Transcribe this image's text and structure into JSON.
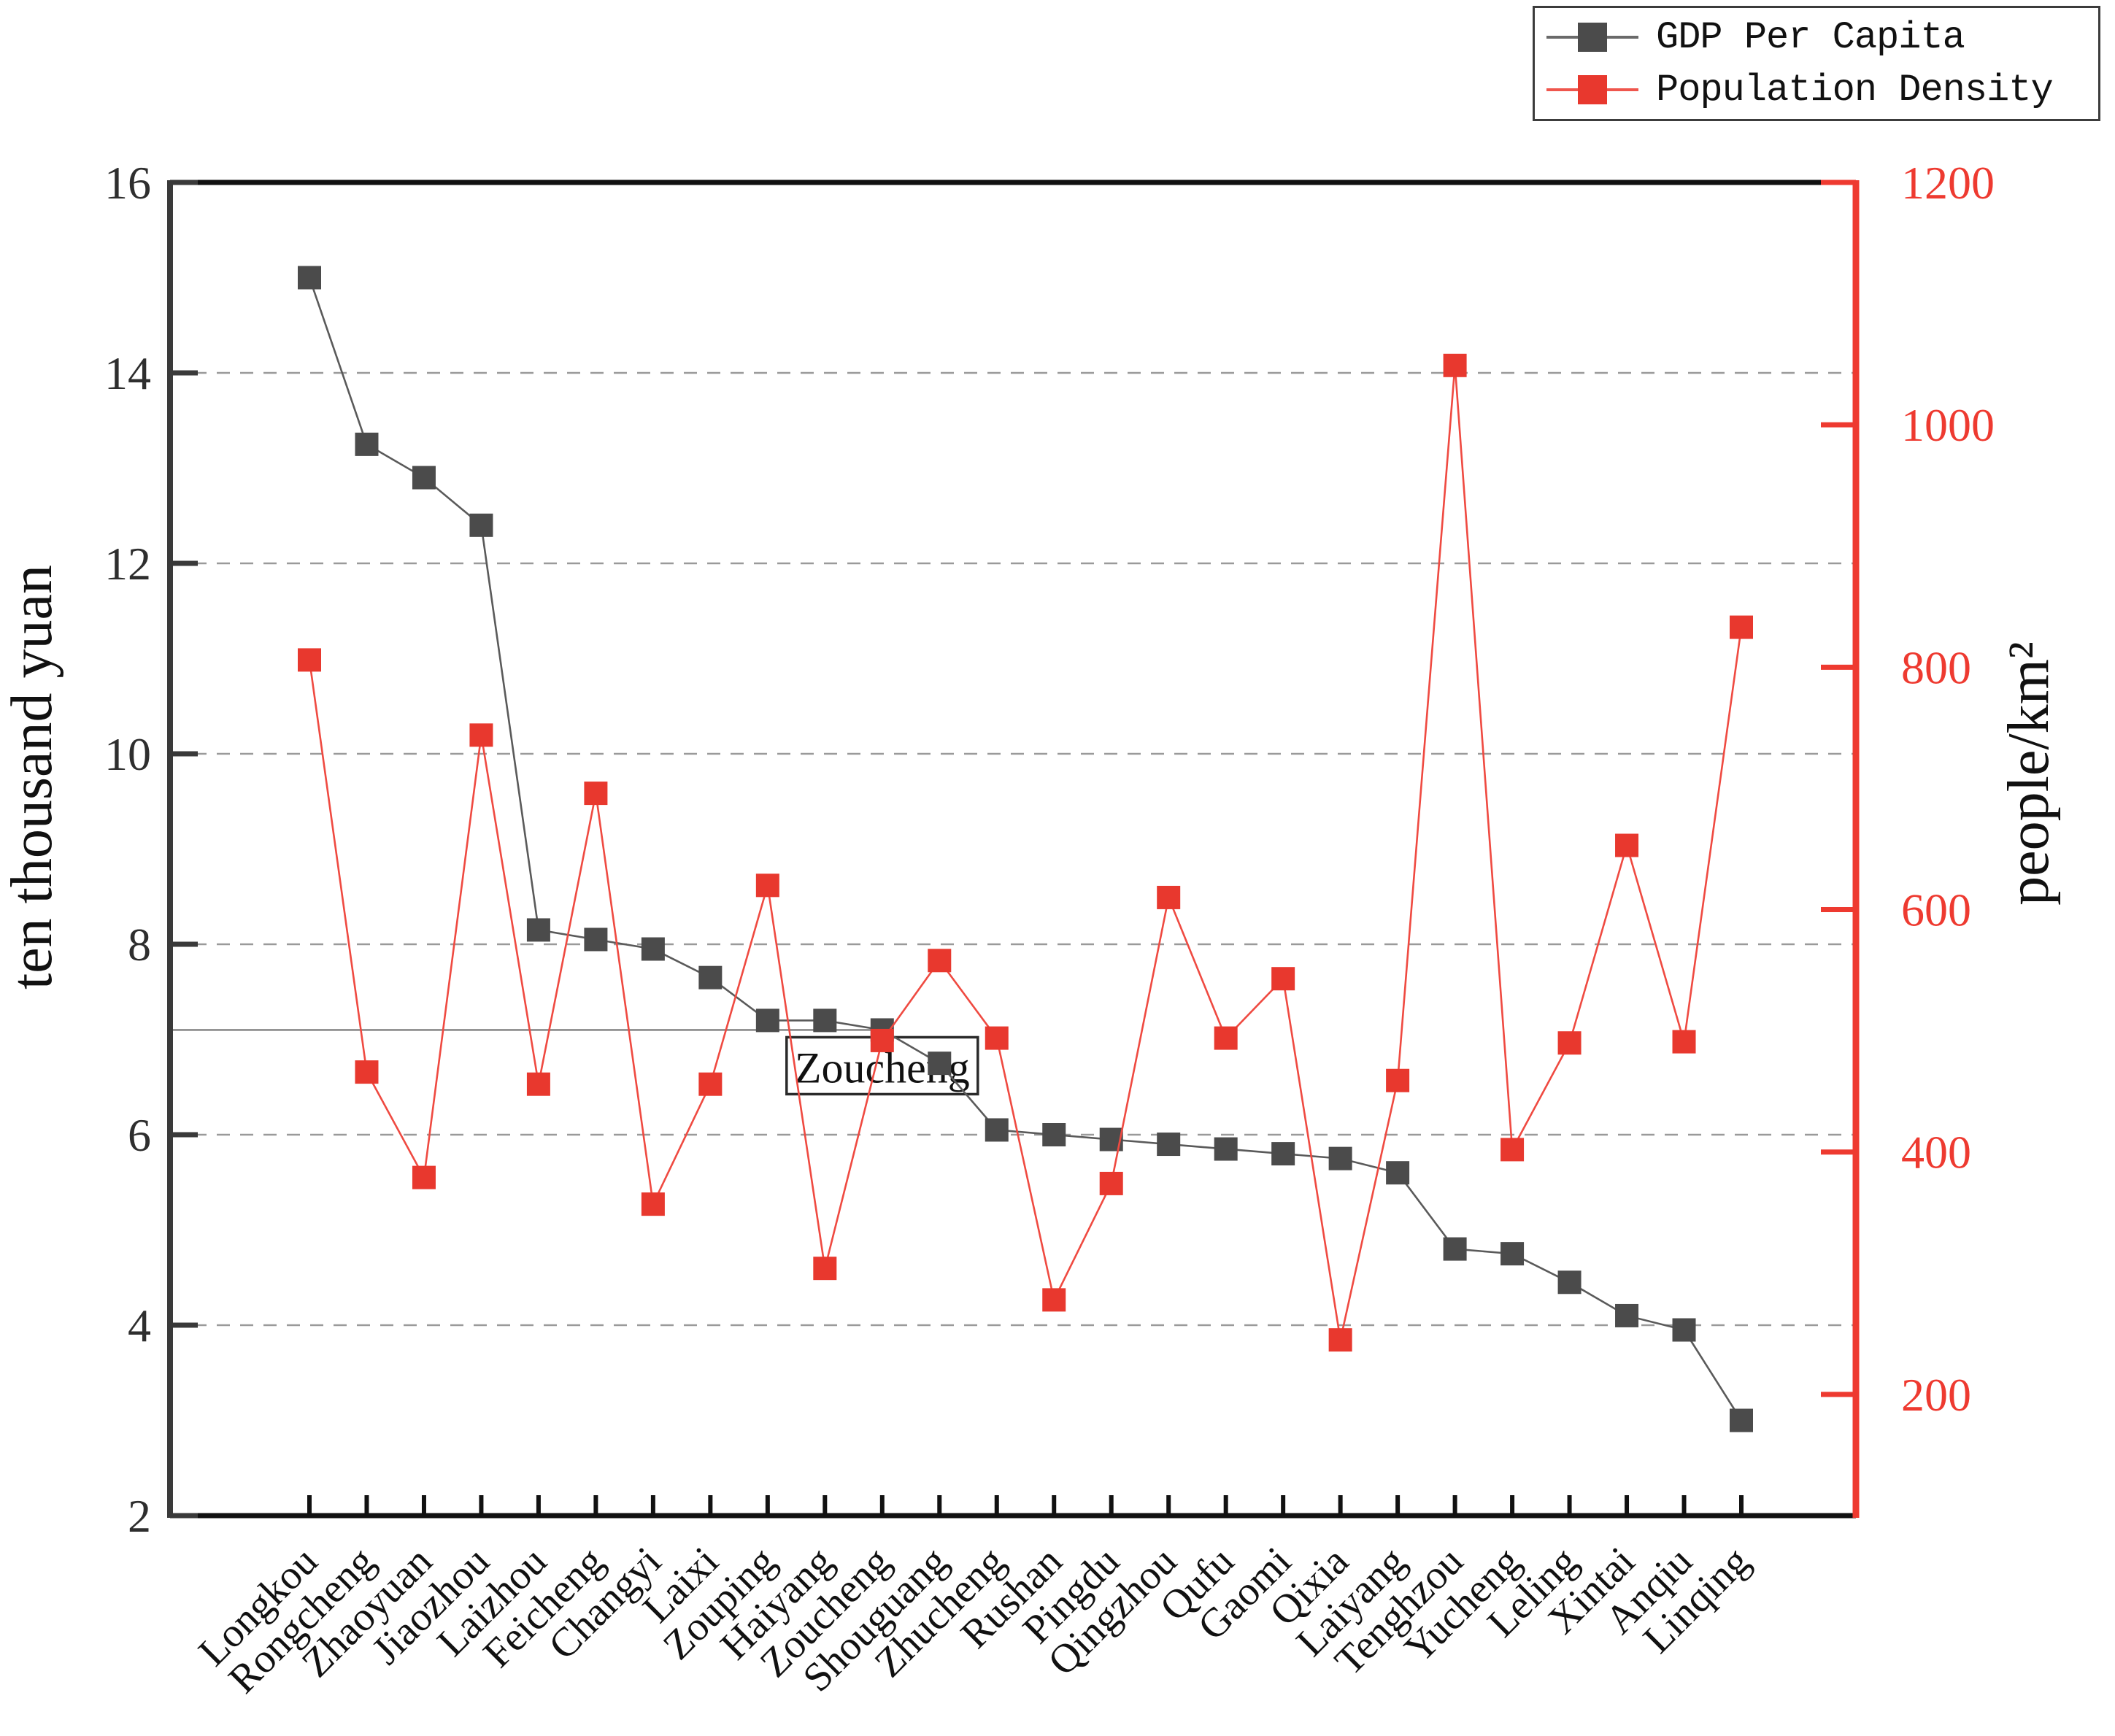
{
  "figure": {
    "background": "#ffffff"
  },
  "legend": {
    "items": [
      {
        "label": "GDP Per Capita",
        "color": "#4b4b4b"
      },
      {
        "label": "Population Density",
        "color": "#e8382e"
      }
    ]
  },
  "chart_data": {
    "type": "line",
    "categories": [
      "Longkou",
      "Rongcheng",
      "Zhaoyuan",
      "Jiaozhou",
      "Laizhou",
      "Feicheng",
      "Changyi",
      "Laixi",
      "Zouping",
      "Haiyang",
      "Zoucheng",
      "Shouguang",
      "Zhucheng",
      "Rushan",
      "Pingdu",
      "Qingzhou",
      "Qufu",
      "Gaomi",
      "Qixia",
      "Laiyang",
      "Tenghzou",
      "Yucheng",
      "Leling",
      "Xintai",
      "Anqiu",
      "Linqing"
    ],
    "series": [
      {
        "name": "GDP Per Capita",
        "axis": "left",
        "color": "#4b4b4b",
        "values": [
          15.0,
          13.25,
          12.9,
          12.4,
          8.15,
          8.05,
          7.95,
          7.65,
          7.2,
          7.2,
          7.1,
          6.75,
          6.05,
          6.0,
          5.95,
          5.9,
          5.85,
          5.8,
          5.75,
          5.6,
          4.8,
          4.75,
          4.45,
          4.1,
          3.95,
          3.0
        ]
      },
      {
        "name": "Population Density",
        "axis": "right",
        "color": "#e8382e",
        "values": [
          806,
          466,
          379,
          744,
          456,
          696,
          357,
          456,
          620,
          304,
          492,
          558,
          494,
          278,
          374,
          610,
          494,
          543,
          245,
          459,
          1049,
          402,
          490,
          653,
          491,
          833
        ]
      }
    ],
    "left_axis": {
      "label": "ten thousand yuan",
      "ticks": [
        16,
        14,
        12,
        10,
        8,
        6,
        4,
        2
      ],
      "range": [
        2,
        16
      ],
      "gridline_values": [
        14,
        12,
        10,
        8,
        6,
        4
      ],
      "color": "#2e2e2e"
    },
    "right_axis": {
      "label": "people/km²",
      "ticks": [
        1200,
        1000,
        800,
        600,
        400,
        200
      ],
      "range": [
        100,
        1200
      ],
      "color": "#ee3a30"
    },
    "annotation": {
      "label": "Zoucheng",
      "category": "Zoucheng",
      "value": 7.1
    },
    "reference_line": {
      "value": 7.1,
      "from_category": "Longkou",
      "to_category": "Zoucheng"
    },
    "legend_position": "top-right",
    "grid": "dashed-horizontal",
    "xlabel": "",
    "title": ""
  }
}
